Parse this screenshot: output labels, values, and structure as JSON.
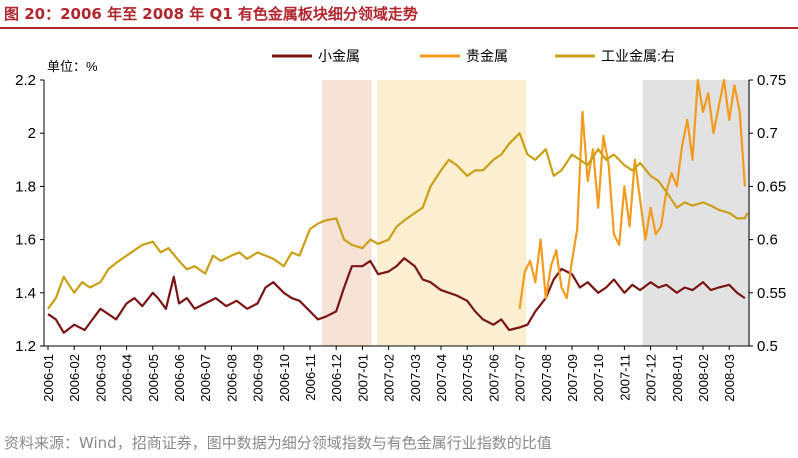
{
  "figure": {
    "title": "图 20：2006 年至 2008 年 Q1 有色金属板块细分领域走势",
    "source": "资料来源：Wind，招商证券，图中数据为细分领域指数与有色金属行业指数的比值",
    "colors": {
      "title": "#b0272f"
    }
  },
  "chart_data": {
    "type": "line",
    "unit_label": "单位：%",
    "x_categories": [
      "2006-01",
      "2006-02",
      "2006-03",
      "2006-04",
      "2006-05",
      "2006-06",
      "2006-07",
      "2006-08",
      "2006-09",
      "2006-10",
      "2006-11",
      "2006-12",
      "2007-01",
      "2007-02",
      "2007-03",
      "2007-04",
      "2007-05",
      "2007-06",
      "2007-07",
      "2007-08",
      "2007-09",
      "2007-10",
      "2007-11",
      "2007-12",
      "2008-01",
      "2008-02",
      "2008-03"
    ],
    "y_left": {
      "min": 1.2,
      "max": 2.2,
      "ticks": [
        "1.2",
        "1.4",
        "1.6",
        "1.8",
        "2",
        "2.2"
      ]
    },
    "y_right": {
      "min": 0.5,
      "max": 0.75,
      "ticks": [
        "0.5",
        "0.55",
        "0.6",
        "0.65",
        "0.7",
        "0.75"
      ]
    },
    "shaded_periods": [
      {
        "from": 10.45,
        "to": 12.35,
        "color": "#f7e2d6"
      },
      {
        "from": 12.55,
        "to": 18.25,
        "color": "#fcefcf"
      },
      {
        "from": 22.7,
        "to": 26.8,
        "color": "#e2e2e2"
      }
    ],
    "series": [
      {
        "name": "小金属",
        "axis": "left",
        "color": "#7a1515",
        "x": [
          0,
          0.3,
          0.6,
          1,
          1.4,
          1.7,
          2,
          2.3,
          2.6,
          3,
          3.3,
          3.6,
          4,
          4.2,
          4.5,
          4.8,
          5,
          5.3,
          5.6,
          6,
          6.4,
          6.8,
          7.2,
          7.6,
          8,
          8.3,
          8.6,
          9,
          9.3,
          9.6,
          10,
          10.3,
          10.6,
          11,
          11.3,
          11.6,
          12,
          12.3,
          12.6,
          13,
          13.3,
          13.6,
          14,
          14.3,
          14.6,
          15,
          15.3,
          15.6,
          16,
          16.3,
          16.6,
          17,
          17.3,
          17.6,
          18,
          18.3,
          18.6,
          19,
          19.3,
          19.6,
          20,
          20.3,
          20.6,
          21,
          21.3,
          21.6,
          22,
          22.3,
          22.6,
          23,
          23.3,
          23.6,
          24,
          24.3,
          24.6,
          25,
          25.3,
          25.6,
          26,
          26.3,
          26.6
        ],
        "y": [
          1.32,
          1.3,
          1.25,
          1.28,
          1.26,
          1.3,
          1.34,
          1.32,
          1.3,
          1.36,
          1.38,
          1.35,
          1.4,
          1.38,
          1.34,
          1.46,
          1.36,
          1.38,
          1.34,
          1.36,
          1.38,
          1.35,
          1.37,
          1.34,
          1.36,
          1.42,
          1.44,
          1.4,
          1.38,
          1.37,
          1.33,
          1.3,
          1.31,
          1.33,
          1.42,
          1.5,
          1.5,
          1.52,
          1.47,
          1.48,
          1.5,
          1.53,
          1.5,
          1.45,
          1.44,
          1.41,
          1.4,
          1.39,
          1.37,
          1.33,
          1.3,
          1.28,
          1.3,
          1.26,
          1.27,
          1.28,
          1.33,
          1.38,
          1.45,
          1.49,
          1.47,
          1.42,
          1.44,
          1.4,
          1.42,
          1.45,
          1.4,
          1.43,
          1.41,
          1.44,
          1.42,
          1.43,
          1.4,
          1.42,
          1.41,
          1.44,
          1.41,
          1.42,
          1.43,
          1.4,
          1.38
        ]
      },
      {
        "name": "贵金属",
        "axis": "left",
        "color": "#f29b1f",
        "x": [
          18,
          18.2,
          18.4,
          18.6,
          18.8,
          19,
          19.2,
          19.4,
          19.6,
          19.8,
          20,
          20.2,
          20.4,
          20.6,
          20.8,
          21,
          21.2,
          21.4,
          21.6,
          21.8,
          22,
          22.2,
          22.4,
          22.6,
          22.8,
          23,
          23.2,
          23.4,
          23.6,
          23.8,
          24,
          24.2,
          24.4,
          24.6,
          24.8,
          25,
          25.2,
          25.4,
          25.6,
          25.8,
          26,
          26.2,
          26.4,
          26.6
        ],
        "y": [
          1.34,
          1.48,
          1.52,
          1.44,
          1.6,
          1.38,
          1.5,
          1.56,
          1.42,
          1.38,
          1.52,
          1.64,
          2.08,
          1.82,
          1.94,
          1.72,
          1.99,
          1.88,
          1.62,
          1.58,
          1.8,
          1.65,
          1.9,
          1.75,
          1.6,
          1.72,
          1.62,
          1.65,
          1.78,
          1.85,
          1.8,
          1.95,
          2.05,
          1.9,
          2.2,
          2.08,
          2.15,
          2.0,
          2.1,
          2.2,
          2.05,
          2.18,
          2.08,
          1.8
        ]
      },
      {
        "name": "工业金属:右",
        "axis": "right",
        "color": "#c9a018",
        "x": [
          0,
          0.3,
          0.6,
          1,
          1.3,
          1.6,
          2,
          2.3,
          2.6,
          3,
          3.3,
          3.6,
          4,
          4.3,
          4.6,
          5,
          5.3,
          5.6,
          6,
          6.3,
          6.6,
          7,
          7.3,
          7.6,
          8,
          8.3,
          8.6,
          9,
          9.3,
          9.6,
          10,
          10.3,
          10.6,
          11,
          11.3,
          11.6,
          12,
          12.3,
          12.6,
          13,
          13.3,
          13.6,
          14,
          14.3,
          14.6,
          15,
          15.3,
          15.6,
          16,
          16.3,
          16.6,
          17,
          17.3,
          17.6,
          18,
          18.3,
          18.6,
          19,
          19.3,
          19.6,
          20,
          20.3,
          20.6,
          21,
          21.3,
          21.6,
          22,
          22.3,
          22.6,
          23,
          23.3,
          23.6,
          24,
          24.3,
          24.6,
          25,
          25.3,
          25.6,
          26,
          26.3,
          26.6,
          26.7
        ],
        "y": [
          0.535,
          0.545,
          0.565,
          0.55,
          0.56,
          0.555,
          0.56,
          0.572,
          0.578,
          0.585,
          0.59,
          0.595,
          0.598,
          0.588,
          0.592,
          0.58,
          0.572,
          0.575,
          0.568,
          0.585,
          0.58,
          0.585,
          0.588,
          0.582,
          0.588,
          0.585,
          0.582,
          0.575,
          0.588,
          0.585,
          0.61,
          0.615,
          0.618,
          0.62,
          0.6,
          0.595,
          0.592,
          0.6,
          0.596,
          0.6,
          0.612,
          0.618,
          0.625,
          0.63,
          0.65,
          0.665,
          0.675,
          0.67,
          0.66,
          0.665,
          0.665,
          0.675,
          0.68,
          0.69,
          0.7,
          0.68,
          0.675,
          0.685,
          0.66,
          0.665,
          0.68,
          0.675,
          0.67,
          0.685,
          0.675,
          0.68,
          0.67,
          0.665,
          0.672,
          0.66,
          0.655,
          0.645,
          0.63,
          0.635,
          0.632,
          0.635,
          0.632,
          0.628,
          0.625,
          0.62,
          0.62,
          0.625
        ]
      }
    ]
  }
}
